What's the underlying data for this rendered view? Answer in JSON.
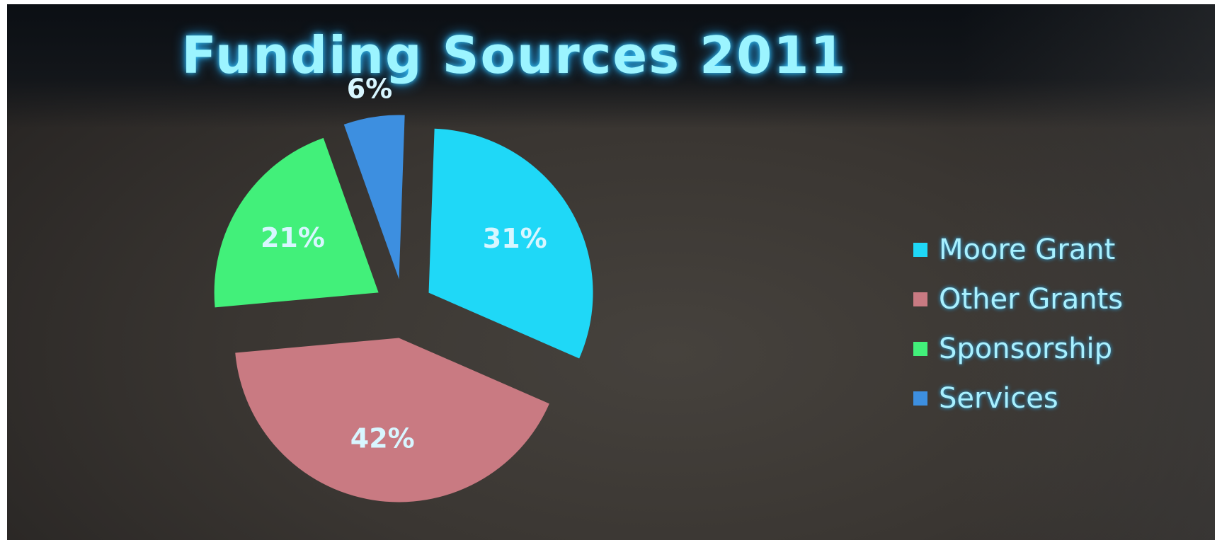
{
  "chart_data": {
    "type": "pie",
    "title": "Funding Sources 2011",
    "categories": [
      "Moore Grant",
      "Other Grants",
      "Sponsorship",
      "Services"
    ],
    "values": [
      31,
      42,
      21,
      6
    ],
    "labels": [
      "31%",
      "42%",
      "21%",
      "6%"
    ],
    "colors": [
      "#1fd8f7",
      "#c97a82",
      "#42f07a",
      "#3d8fe0"
    ],
    "legend_position": "right",
    "exploded": true
  }
}
